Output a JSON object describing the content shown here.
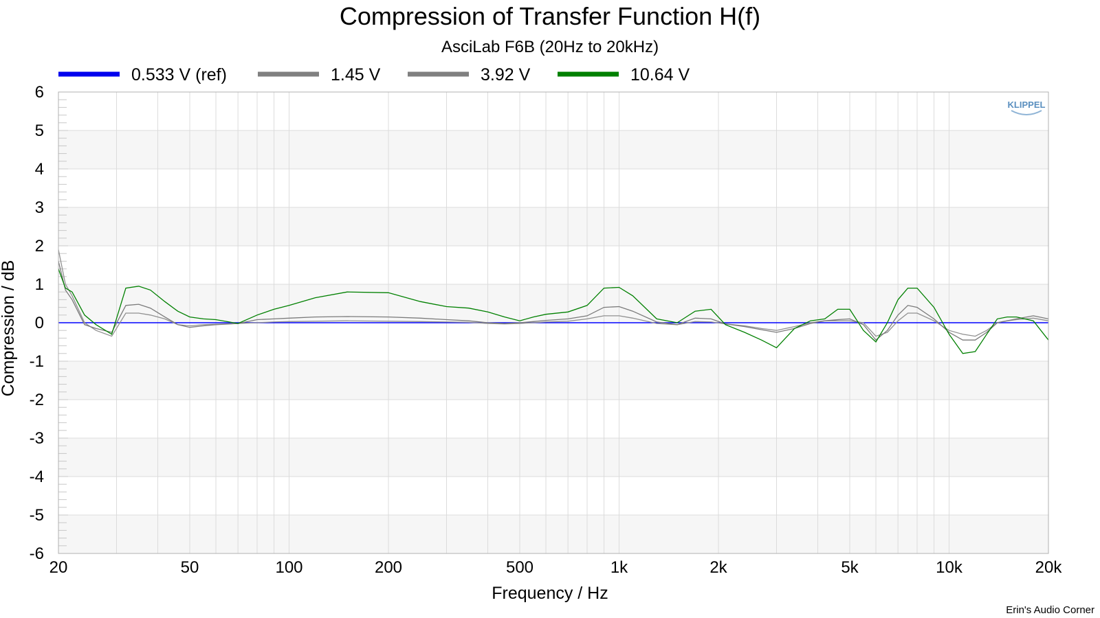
{
  "chart_data": {
    "type": "line",
    "title": "Compression of Transfer Function H(f)",
    "subtitle": "AsciLab F6B (20Hz to 20kHz)",
    "xlabel": "Frequency / Hz",
    "ylabel": "Compression / dB",
    "xscale": "log",
    "xlim": [
      20,
      20000
    ],
    "ylim": [
      -6,
      6
    ],
    "x_ticks": [
      20,
      50,
      100,
      200,
      500,
      1000,
      2000,
      5000,
      10000,
      20000
    ],
    "x_tick_labels": [
      "20",
      "50",
      "100",
      "200",
      "500",
      "1k",
      "2k",
      "5k",
      "10k",
      "20k"
    ],
    "y_ticks": [
      6,
      5,
      4,
      3,
      2,
      1,
      0,
      -1,
      -2,
      -3,
      -4,
      -5,
      -6
    ],
    "y_tick_labels": [
      "6",
      "5",
      "4",
      "3",
      "2",
      "1",
      "0",
      "-1",
      "-2",
      "-3",
      "-4",
      "-5",
      "-6"
    ],
    "grid": true,
    "legend_position": "top",
    "watermark": "KLIPPEL",
    "credit": "Erin's Audio Corner",
    "series": [
      {
        "name": "0.533 V (ref)",
        "color": "#0000ff",
        "legend_color": "#0000ee",
        "x": [
          20,
          20000
        ],
        "y": [
          0,
          0
        ]
      },
      {
        "name": "1.45 V",
        "color": "#909090",
        "legend_color": "#808080",
        "x": [
          20,
          21,
          22,
          24,
          26,
          29,
          32,
          35,
          38,
          42,
          46,
          50,
          55,
          60,
          70,
          80,
          90,
          100,
          120,
          150,
          200,
          250,
          300,
          350,
          400,
          450,
          500,
          550,
          600,
          700,
          800,
          900,
          1000,
          1100,
          1300,
          1500,
          1700,
          1900,
          2100,
          2400,
          2700,
          3000,
          3400,
          3800,
          4200,
          4600,
          5000,
          5500,
          6000,
          6500,
          7000,
          7500,
          8000,
          9000,
          10000,
          11000,
          12000,
          13000,
          14000,
          15000,
          16000,
          18000,
          20000
        ],
        "y": [
          1.9,
          1.0,
          0.7,
          0.0,
          -0.2,
          -0.35,
          0.25,
          0.25,
          0.2,
          0.1,
          -0.05,
          -0.08,
          -0.05,
          -0.04,
          -0.02,
          0.0,
          0.02,
          0.03,
          0.04,
          0.05,
          0.04,
          0.03,
          0.02,
          0.01,
          -0.02,
          -0.03,
          -0.02,
          0.0,
          0.02,
          0.04,
          0.1,
          0.18,
          0.18,
          0.12,
          -0.02,
          -0.05,
          0.03,
          0.02,
          -0.03,
          -0.08,
          -0.15,
          -0.2,
          -0.1,
          0.0,
          0.05,
          0.05,
          0.05,
          0.0,
          -0.35,
          -0.25,
          0.05,
          0.25,
          0.25,
          0.05,
          -0.2,
          -0.3,
          -0.35,
          -0.2,
          0.0,
          0.05,
          0.08,
          0.12,
          0.05
        ]
      },
      {
        "name": "3.92 V",
        "color": "#7a7a7a",
        "legend_color": "#808080",
        "x": [
          20,
          21,
          22,
          24,
          26,
          29,
          32,
          35,
          38,
          42,
          46,
          50,
          55,
          60,
          70,
          80,
          90,
          100,
          120,
          150,
          200,
          250,
          300,
          350,
          400,
          450,
          500,
          550,
          600,
          700,
          800,
          900,
          1000,
          1100,
          1300,
          1500,
          1700,
          1900,
          2100,
          2400,
          2700,
          3000,
          3400,
          3800,
          4200,
          4600,
          5000,
          5500,
          6000,
          6500,
          7000,
          7500,
          8000,
          9000,
          10000,
          11000,
          12000,
          13000,
          14000,
          15000,
          16000,
          18000,
          20000
        ],
        "y": [
          1.6,
          0.85,
          0.6,
          -0.05,
          -0.15,
          -0.25,
          0.45,
          0.48,
          0.38,
          0.15,
          -0.05,
          -0.12,
          -0.08,
          -0.05,
          -0.02,
          0.08,
          0.1,
          0.12,
          0.15,
          0.16,
          0.15,
          0.12,
          0.08,
          0.05,
          0.0,
          -0.02,
          0.0,
          0.03,
          0.06,
          0.1,
          0.18,
          0.4,
          0.42,
          0.3,
          0.02,
          -0.05,
          0.12,
          0.1,
          -0.03,
          -0.1,
          -0.18,
          -0.25,
          -0.15,
          -0.02,
          0.05,
          0.08,
          0.1,
          -0.05,
          -0.45,
          -0.2,
          0.2,
          0.45,
          0.4,
          0.1,
          -0.25,
          -0.45,
          -0.45,
          -0.25,
          0.0,
          0.05,
          0.1,
          0.18,
          0.1
        ]
      },
      {
        "name": "10.64 V",
        "color": "#008000",
        "legend_color": "#008000",
        "x": [
          20,
          21,
          22,
          24,
          26,
          29,
          32,
          35,
          38,
          42,
          46,
          50,
          55,
          60,
          70,
          80,
          90,
          100,
          120,
          150,
          200,
          250,
          300,
          350,
          400,
          450,
          500,
          550,
          600,
          700,
          800,
          900,
          1000,
          1100,
          1300,
          1500,
          1700,
          1900,
          2100,
          2400,
          2700,
          3000,
          3400,
          3800,
          4200,
          4600,
          5000,
          5500,
          6000,
          6500,
          7000,
          7500,
          8000,
          9000,
          10000,
          11000,
          12000,
          13000,
          14000,
          15000,
          16000,
          18000,
          20000
        ],
        "y": [
          1.4,
          0.9,
          0.8,
          0.2,
          -0.05,
          -0.3,
          0.9,
          0.95,
          0.85,
          0.55,
          0.3,
          0.15,
          0.1,
          0.08,
          -0.02,
          0.2,
          0.35,
          0.45,
          0.65,
          0.8,
          0.78,
          0.55,
          0.42,
          0.38,
          0.28,
          0.15,
          0.05,
          0.15,
          0.22,
          0.28,
          0.45,
          0.9,
          0.92,
          0.7,
          0.1,
          0.0,
          0.3,
          0.35,
          -0.05,
          -0.25,
          -0.45,
          -0.65,
          -0.15,
          0.05,
          0.1,
          0.35,
          0.35,
          -0.2,
          -0.5,
          0.0,
          0.6,
          0.9,
          0.9,
          0.4,
          -0.3,
          -0.8,
          -0.75,
          -0.3,
          0.1,
          0.15,
          0.15,
          0.05,
          -0.45
        ]
      }
    ]
  }
}
